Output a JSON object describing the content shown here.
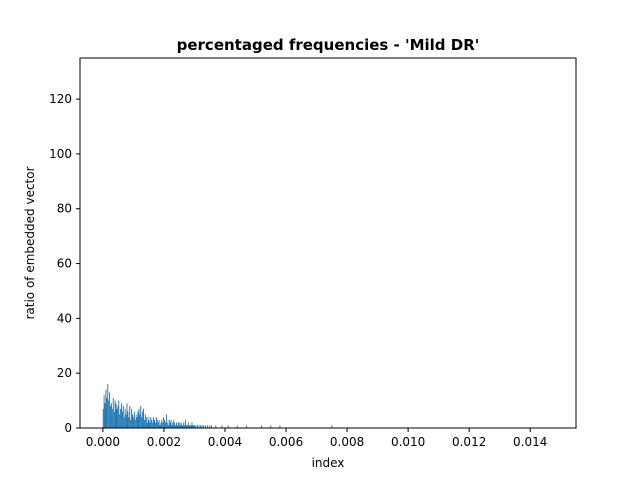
{
  "chart_data": {
    "type": "bar",
    "title": "percentaged frequencies - 'Mild DR'",
    "xlabel": "index",
    "ylabel": "ratio of embedded vector",
    "xlim": [
      -0.00075,
      0.0155
    ],
    "ylim": [
      0,
      135
    ],
    "xticks": [
      0.0,
      0.002,
      0.004,
      0.006,
      0.008,
      0.01,
      0.012,
      0.014
    ],
    "xtick_labels": [
      "0.000",
      "0.002",
      "0.004",
      "0.006",
      "0.008",
      "0.010",
      "0.012",
      "0.014"
    ],
    "yticks": [
      0,
      20,
      40,
      60,
      80,
      100,
      120
    ],
    "ytick_labels": [
      "0",
      "20",
      "40",
      "60",
      "80",
      "100",
      "120"
    ],
    "grid": false,
    "color": "#1f77b4",
    "bar_width": 3e-05,
    "x": [
      1e-05,
      4e-05,
      7e-05,
      0.0001,
      0.00013,
      0.00016,
      0.00019,
      0.00022,
      0.00025,
      0.00028,
      0.00031,
      0.00034,
      0.00037,
      0.0004,
      0.00043,
      0.00046,
      0.00049,
      0.00052,
      0.00055,
      0.00058,
      0.00061,
      0.00064,
      0.00067,
      0.0007,
      0.00073,
      0.00076,
      0.00079,
      0.00082,
      0.00085,
      0.00088,
      0.00091,
      0.00094,
      0.00097,
      0.001,
      0.00103,
      0.00106,
      0.00109,
      0.00112,
      0.00115,
      0.00118,
      0.00121,
      0.00124,
      0.00127,
      0.0013,
      0.00133,
      0.00136,
      0.00139,
      0.00142,
      0.00145,
      0.00148,
      0.00151,
      0.00154,
      0.00157,
      0.0016,
      0.00163,
      0.00166,
      0.00169,
      0.00172,
      0.00175,
      0.00178,
      0.00181,
      0.00184,
      0.00187,
      0.0019,
      0.00193,
      0.00196,
      0.00199,
      0.00202,
      0.00205,
      0.00208,
      0.00211,
      0.00214,
      0.00217,
      0.0022,
      0.00223,
      0.00226,
      0.00229,
      0.00232,
      0.00235,
      0.00238,
      0.00241,
      0.00244,
      0.00247,
      0.0025,
      0.00253,
      0.00256,
      0.00259,
      0.00262,
      0.00265,
      0.00268,
      0.00271,
      0.00274,
      0.00277,
      0.0028,
      0.00283,
      0.00286,
      0.00289,
      0.00292,
      0.00295,
      0.00298,
      0.00301,
      0.00305,
      0.0031,
      0.00315,
      0.0032,
      0.00325,
      0.0033,
      0.00336,
      0.00343,
      0.0035,
      0.00356,
      0.0037,
      0.0039,
      0.0041,
      0.0044,
      0.0047,
      0.0052,
      0.0055,
      0.0058,
      0.0075
    ],
    "values": [
      7,
      12,
      9,
      14,
      11,
      16,
      10,
      13,
      8,
      9,
      7,
      11,
      6,
      10,
      9,
      7,
      8,
      10,
      5,
      7,
      9,
      6,
      8,
      4,
      7,
      5,
      9,
      6,
      4,
      8,
      3,
      7,
      5,
      4,
      6,
      3,
      5,
      4,
      6,
      7,
      5,
      8,
      4,
      6,
      7,
      3,
      5,
      4,
      2,
      4,
      3,
      2,
      4,
      3,
      2,
      4,
      3,
      2,
      4,
      3,
      2,
      3,
      1,
      2,
      3,
      2,
      4,
      3,
      2,
      5,
      2,
      1,
      3,
      2,
      3,
      1,
      2,
      3,
      2,
      1,
      2,
      1,
      2,
      2,
      1,
      2,
      1,
      1,
      2,
      1,
      3,
      1,
      1,
      2,
      1,
      1,
      1,
      2,
      1,
      1,
      1,
      1,
      1,
      1,
      1,
      1,
      1,
      1,
      1,
      1,
      1,
      1,
      1,
      1,
      1,
      1,
      1,
      1,
      1,
      1
    ]
  }
}
